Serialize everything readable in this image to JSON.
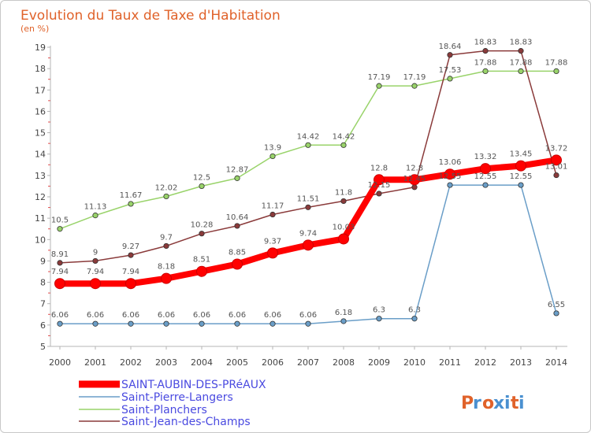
{
  "chart_data": {
    "type": "line",
    "title": "Evolution du Taux de Taxe d'Habitation",
    "subtitle": "(en %)",
    "xlabel": "",
    "ylabel": "",
    "x": [
      "2000",
      "2001",
      "2002",
      "2003",
      "2004",
      "2005",
      "2006",
      "2007",
      "2008",
      "2009",
      "2010",
      "2011",
      "2012",
      "2013",
      "2014"
    ],
    "ylim": [
      5,
      19
    ],
    "yticks": [
      "5",
      "6",
      "7",
      "8",
      "9",
      "10",
      "11",
      "12",
      "13",
      "14",
      "15",
      "16",
      "17",
      "18",
      "19"
    ],
    "grid": false,
    "legend_position": "bottom-left",
    "series": [
      {
        "name": "SAINT-AUBIN-DES-PRéAUX",
        "color": "#ff0000",
        "values": [
          7.94,
          7.94,
          7.94,
          8.18,
          8.51,
          8.85,
          9.37,
          9.74,
          10.03,
          12.8,
          12.8,
          13.06,
          13.32,
          13.45,
          13.72
        ],
        "labels": [
          "7.94",
          "7.94",
          "7.94",
          "8.18",
          "8.51",
          "8.85",
          "9.37",
          "9.74",
          "10.03",
          "12.8",
          "12.8",
          "13.06",
          "13.32",
          "13.45",
          "13.72"
        ]
      },
      {
        "name": "Saint-Pierre-Langers",
        "color": "#6a9ec8",
        "values": [
          6.06,
          6.06,
          6.06,
          6.06,
          6.06,
          6.06,
          6.06,
          6.06,
          6.18,
          6.3,
          6.3,
          12.55,
          12.55,
          12.55,
          6.55
        ],
        "labels": [
          "6.06",
          "6.06",
          "6.06",
          "6.06",
          "6.06",
          "6.06",
          "6.06",
          "6.06",
          "6.18",
          "6.3",
          "6.3",
          "12.55",
          "12.55",
          "12.55",
          "6.55"
        ]
      },
      {
        "name": "Saint-Planchers",
        "color": "#99d36a",
        "values": [
          10.5,
          11.13,
          11.67,
          12.02,
          12.5,
          12.87,
          13.9,
          14.42,
          14.42,
          17.19,
          17.19,
          17.53,
          17.88,
          17.88,
          17.88
        ],
        "labels": [
          "10.5",
          "11.13",
          "11.67",
          "12.02",
          "12.5",
          "12.87",
          "13.9",
          "14.42",
          "14.42",
          "17.19",
          "17.19",
          "17.53",
          "17.88",
          "17.88",
          "17.88"
        ]
      },
      {
        "name": "Saint-Jean-des-Champs",
        "color": "#8a3a3a",
        "values": [
          8.91,
          9,
          9.27,
          9.7,
          10.28,
          10.64,
          11.17,
          11.51,
          11.8,
          12.15,
          12.45,
          18.64,
          18.83,
          18.83,
          13.01
        ],
        "labels": [
          "8.91",
          "9",
          "9.27",
          "9.7",
          "10.28",
          "10.64",
          "11.17",
          "11.51",
          "11.8",
          "12.15",
          "12.45",
          "18.64",
          "18.83",
          "18.83",
          "13.01"
        ]
      }
    ]
  },
  "logo": {
    "text": "Proxiti"
  }
}
